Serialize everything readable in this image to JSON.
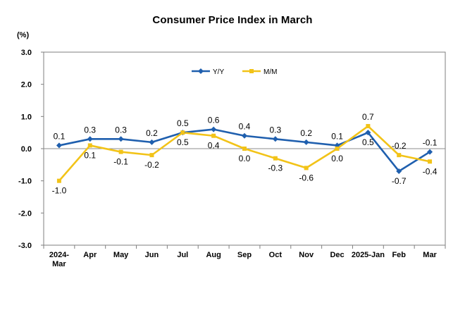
{
  "chart_data": {
    "type": "line",
    "title": "Consumer Price Index in March",
    "ylabel": "(%)",
    "xlabel": "",
    "ylim": [
      -3.0,
      3.0
    ],
    "yticks": [
      "3.0",
      "2.0",
      "1.0",
      "0.0",
      "-1.0",
      "-2.0",
      "-3.0"
    ],
    "ytick_values": [
      3,
      2,
      1,
      0,
      -1,
      -2,
      -3
    ],
    "categories": [
      "2024-Mar",
      "Apr",
      "May",
      "Jun",
      "Jul",
      "Aug",
      "Sep",
      "Oct",
      "Nov",
      "Dec",
      "2025-Jan",
      "Feb",
      "Mar"
    ],
    "category_lines": [
      [
        "2024-",
        "Mar"
      ],
      [
        "Apr"
      ],
      [
        "May"
      ],
      [
        "Jun"
      ],
      [
        "Jul"
      ],
      [
        "Aug"
      ],
      [
        "Sep"
      ],
      [
        "Oct"
      ],
      [
        "Nov"
      ],
      [
        "Dec"
      ],
      [
        "2025-Jan"
      ],
      [
        "Feb"
      ],
      [
        "Mar"
      ]
    ],
    "legend_position": "top-center",
    "series": [
      {
        "name": "Y/Y",
        "color": "#1f5fae",
        "marker": "diamond",
        "values": [
          0.1,
          0.3,
          0.3,
          0.2,
          0.5,
          0.6,
          0.4,
          0.3,
          0.2,
          0.1,
          0.5,
          -0.7,
          -0.1
        ],
        "labels": [
          "0.1",
          "0.3",
          "0.3",
          "0.2",
          "0.5",
          "0.6",
          "0.4",
          "0.3",
          "0.2",
          "0.1",
          "0.5",
          "-0.7",
          "-0.1"
        ],
        "label_side": [
          "above",
          "above",
          "above",
          "above",
          "above",
          "above",
          "above",
          "above",
          "above",
          "above",
          "below",
          "below",
          "above"
        ]
      },
      {
        "name": "M/M",
        "color": "#f2c318",
        "marker": "square",
        "values": [
          -1.0,
          0.1,
          -0.1,
          -0.2,
          0.5,
          0.4,
          0.0,
          -0.3,
          -0.6,
          0.0,
          0.7,
          -0.2,
          -0.4
        ],
        "labels": [
          "-1.0",
          "0.1",
          "-0.1",
          "-0.2",
          "0.5",
          "0.4",
          "0.0",
          "-0.3",
          "-0.6",
          "0.0",
          "0.7",
          "-0.2",
          "-0.4"
        ],
        "label_side": [
          "below",
          "below",
          "below",
          "below",
          "below",
          "below",
          "below",
          "below",
          "below",
          "below",
          "above",
          "above",
          "below"
        ]
      }
    ]
  }
}
